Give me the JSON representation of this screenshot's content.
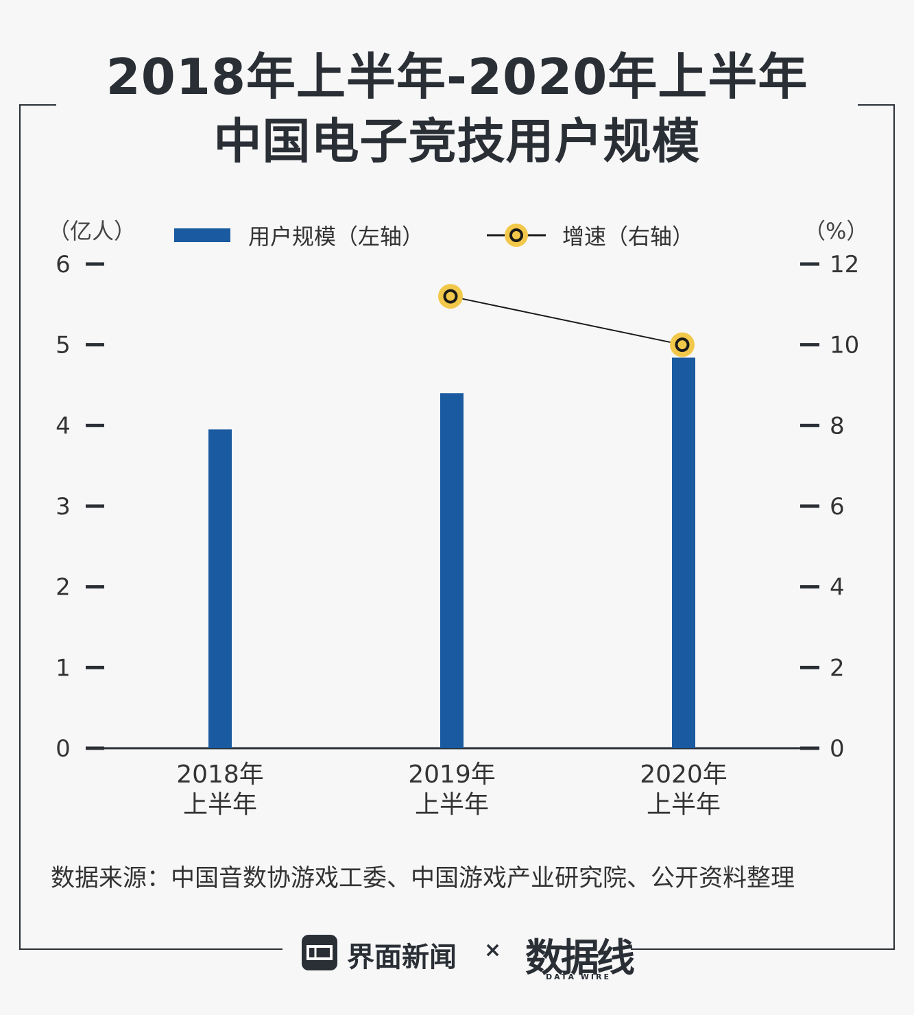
{
  "title": {
    "line1": "2018年上半年-2020年上半年",
    "line2": "中国电子竞技用户规模"
  },
  "units": {
    "left": "（亿人）",
    "right": "（%）"
  },
  "legend": {
    "bar_label": "用户规模（左轴）",
    "line_label": "增速（右轴）"
  },
  "colors": {
    "bar": "#1a5aa0",
    "line": "#1a1a1a",
    "marker_fill": "#f2c84b",
    "axis": "#2a2f36"
  },
  "chart_data": {
    "type": "bar",
    "categories": [
      [
        "2018年",
        "上半年"
      ],
      [
        "2019年",
        "上半年"
      ],
      [
        "2020年",
        "上半年"
      ]
    ],
    "series": [
      {
        "name": "用户规模（左轴）",
        "type": "bar",
        "axis": "left",
        "values": [
          3.95,
          4.4,
          4.84
        ]
      },
      {
        "name": "增速（右轴）",
        "type": "line",
        "axis": "right",
        "values": [
          null,
          11.2,
          10.0
        ]
      }
    ],
    "left_axis": {
      "ticks": [
        "0",
        "1",
        "2",
        "3",
        "4",
        "5",
        "6"
      ],
      "ylim": [
        0,
        6
      ]
    },
    "right_axis": {
      "ticks": [
        "0",
        "2",
        "4",
        "6",
        "8",
        "10",
        "12"
      ],
      "ylim": [
        0,
        12
      ]
    },
    "grid": false
  },
  "source": "数据来源：中国音数协游戏工委、中国游戏产业研究院、公开资料整理",
  "footer": {
    "brand1": "界面新闻",
    "times": "×",
    "brand2": "数据线",
    "brand2_sub": "DATA WIRE"
  }
}
